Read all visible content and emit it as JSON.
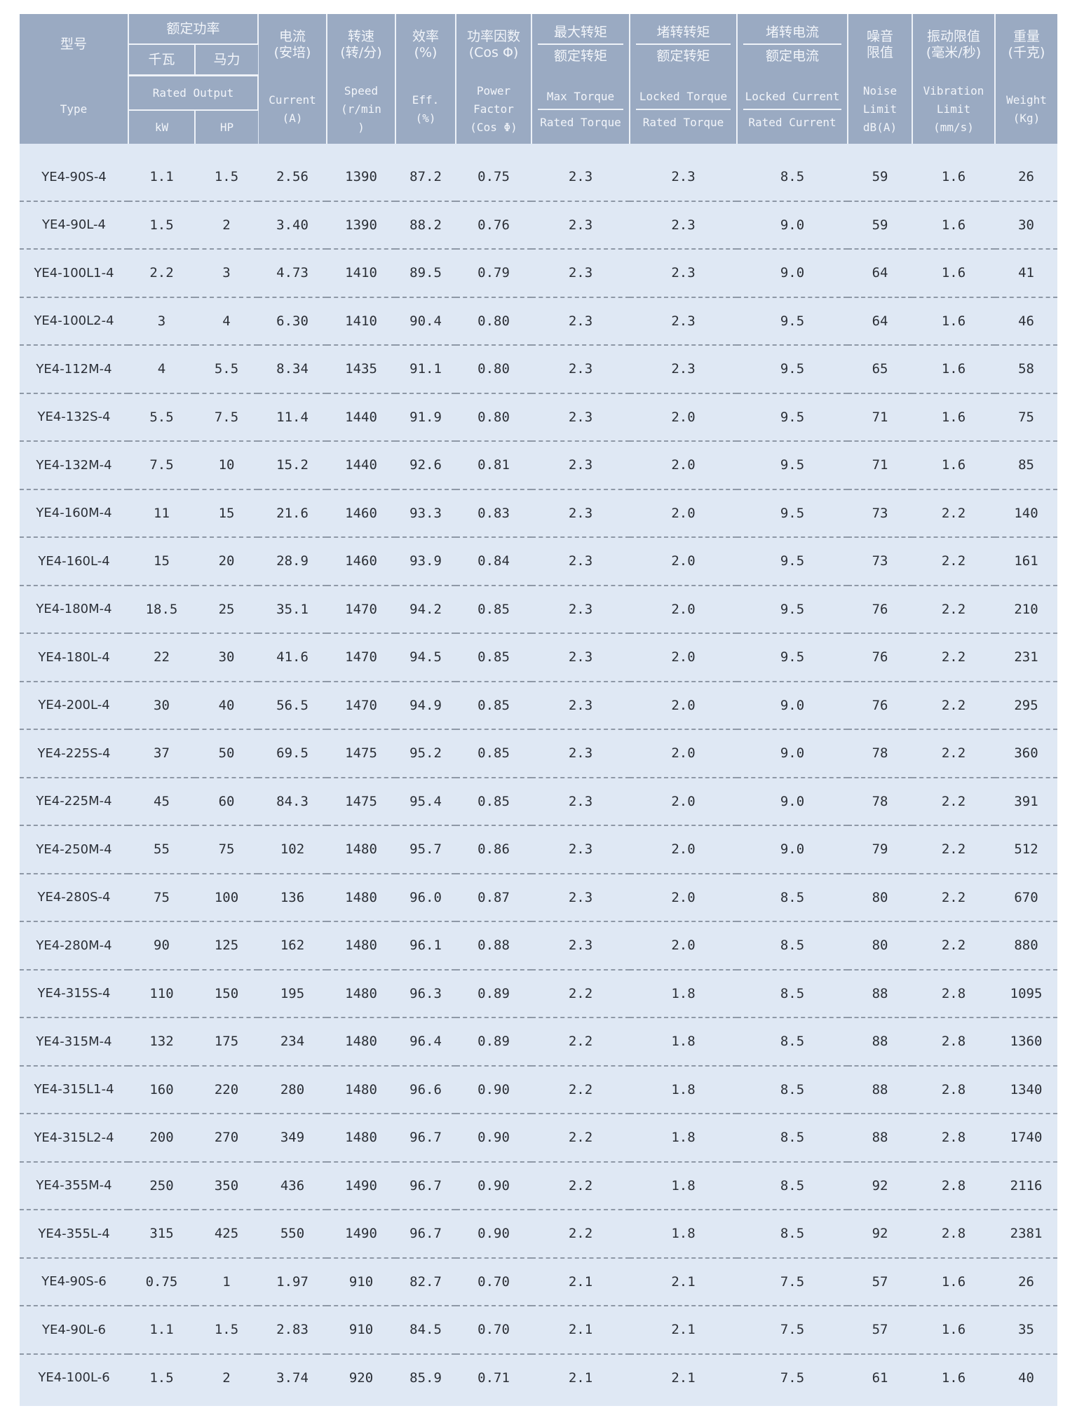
{
  "header": {
    "type_zh": "型号",
    "type_en": "Type",
    "rated_output_zh": "额定功率",
    "rated_output_en": "Rated Output",
    "kw_zh": "千瓦",
    "kw_en": "kW",
    "hp_zh": "马力",
    "hp_en": "HP",
    "current_zh": "电流",
    "current_unit_zh": "(安培)",
    "current_en": "Current",
    "current_unit_en": "(A)",
    "speed_zh": "转速",
    "speed_unit_zh": "(转/分)",
    "speed_en": "Speed",
    "speed_unit_en": "(r/min",
    "speed_unit_en_end": ")",
    "eff_zh": "效率",
    "eff_unit_zh": "(%)",
    "eff_en": "Eff.",
    "eff_unit_en": "(%)",
    "pf_zh": "功率因数",
    "pf_unit_zh": "(Cos Φ)",
    "pf_en_1": "Power",
    "pf_en_2": "Factor",
    "pf_en_3": "(Cos Φ)",
    "maxtorque_zh_top": "最大转矩",
    "maxtorque_zh_bot": "额定转矩",
    "maxtorque_en_top": "Max Torque",
    "maxtorque_en_bot": "Rated Torque",
    "lockedtorque_zh_top": "堵转转矩",
    "lockedtorque_zh_bot": "额定转矩",
    "lockedtorque_en_top": "Locked Torque",
    "lockedtorque_en_bot": "Rated Torque",
    "lockedcurrent_zh_top": "堵转电流",
    "lockedcurrent_zh_bot": "额定电流",
    "lockedcurrent_en_top": "Locked Current",
    "lockedcurrent_en_bot": "Rated Current",
    "noise_zh_1": "噪音",
    "noise_zh_2": "限值",
    "noise_en_1": "Noise",
    "noise_en_2": "Limit",
    "noise_en_3": "dB(A)",
    "vib_zh_1": "振动限值",
    "vib_zh_2": "(毫米/秒)",
    "vib_en_1": "Vibration",
    "vib_en_2": "Limit",
    "vib_en_3": "(mm/s)",
    "weight_zh_1": "重量",
    "weight_zh_2": "(千克)",
    "weight_en_1": "Weight",
    "weight_en_2": "(Kg)"
  },
  "rows": [
    [
      "YE4-90S-4",
      "1.1",
      "1.5",
      "2.56",
      "1390",
      "87.2",
      "0.75",
      "2.3",
      "2.3",
      "8.5",
      "59",
      "1.6",
      "26"
    ],
    [
      "YE4-90L-4",
      "1.5",
      "2",
      "3.40",
      "1390",
      "88.2",
      "0.76",
      "2.3",
      "2.3",
      "9.0",
      "59",
      "1.6",
      "30"
    ],
    [
      "YE4-100L1-4",
      "2.2",
      "3",
      "4.73",
      "1410",
      "89.5",
      "0.79",
      "2.3",
      "2.3",
      "9.0",
      "64",
      "1.6",
      "41"
    ],
    [
      "YE4-100L2-4",
      "3",
      "4",
      "6.30",
      "1410",
      "90.4",
      "0.80",
      "2.3",
      "2.3",
      "9.5",
      "64",
      "1.6",
      "46"
    ],
    [
      "YE4-112M-4",
      "4",
      "5.5",
      "8.34",
      "1435",
      "91.1",
      "0.80",
      "2.3",
      "2.3",
      "9.5",
      "65",
      "1.6",
      "58"
    ],
    [
      "YE4-132S-4",
      "5.5",
      "7.5",
      "11.4",
      "1440",
      "91.9",
      "0.80",
      "2.3",
      "2.0",
      "9.5",
      "71",
      "1.6",
      "75"
    ],
    [
      "YE4-132M-4",
      "7.5",
      "10",
      "15.2",
      "1440",
      "92.6",
      "0.81",
      "2.3",
      "2.0",
      "9.5",
      "71",
      "1.6",
      "85"
    ],
    [
      "YE4-160M-4",
      "11",
      "15",
      "21.6",
      "1460",
      "93.3",
      "0.83",
      "2.3",
      "2.0",
      "9.5",
      "73",
      "2.2",
      "140"
    ],
    [
      "YE4-160L-4",
      "15",
      "20",
      "28.9",
      "1460",
      "93.9",
      "0.84",
      "2.3",
      "2.0",
      "9.5",
      "73",
      "2.2",
      "161"
    ],
    [
      "YE4-180M-4",
      "18.5",
      "25",
      "35.1",
      "1470",
      "94.2",
      "0.85",
      "2.3",
      "2.0",
      "9.5",
      "76",
      "2.2",
      "210"
    ],
    [
      "YE4-180L-4",
      "22",
      "30",
      "41.6",
      "1470",
      "94.5",
      "0.85",
      "2.3",
      "2.0",
      "9.5",
      "76",
      "2.2",
      "231"
    ],
    [
      "YE4-200L-4",
      "30",
      "40",
      "56.5",
      "1470",
      "94.9",
      "0.85",
      "2.3",
      "2.0",
      "9.0",
      "76",
      "2.2",
      "295"
    ],
    [
      "YE4-225S-4",
      "37",
      "50",
      "69.5",
      "1475",
      "95.2",
      "0.85",
      "2.3",
      "2.0",
      "9.0",
      "78",
      "2.2",
      "360"
    ],
    [
      "YE4-225M-4",
      "45",
      "60",
      "84.3",
      "1475",
      "95.4",
      "0.85",
      "2.3",
      "2.0",
      "9.0",
      "78",
      "2.2",
      "391"
    ],
    [
      "YE4-250M-4",
      "55",
      "75",
      "102",
      "1480",
      "95.7",
      "0.86",
      "2.3",
      "2.0",
      "9.0",
      "79",
      "2.2",
      "512"
    ],
    [
      "YE4-280S-4",
      "75",
      "100",
      "136",
      "1480",
      "96.0",
      "0.87",
      "2.3",
      "2.0",
      "8.5",
      "80",
      "2.2",
      "670"
    ],
    [
      "YE4-280M-4",
      "90",
      "125",
      "162",
      "1480",
      "96.1",
      "0.88",
      "2.3",
      "2.0",
      "8.5",
      "80",
      "2.2",
      "880"
    ],
    [
      "YE4-315S-4",
      "110",
      "150",
      "195",
      "1480",
      "96.3",
      "0.89",
      "2.2",
      "1.8",
      "8.5",
      "88",
      "2.8",
      "1095"
    ],
    [
      "YE4-315M-4",
      "132",
      "175",
      "234",
      "1480",
      "96.4",
      "0.89",
      "2.2",
      "1.8",
      "8.5",
      "88",
      "2.8",
      "1360"
    ],
    [
      "YE4-315L1-4",
      "160",
      "220",
      "280",
      "1480",
      "96.6",
      "0.90",
      "2.2",
      "1.8",
      "8.5",
      "88",
      "2.8",
      "1340"
    ],
    [
      "YE4-315L2-4",
      "200",
      "270",
      "349",
      "1480",
      "96.7",
      "0.90",
      "2.2",
      "1.8",
      "8.5",
      "88",
      "2.8",
      "1740"
    ],
    [
      "YE4-355M-4",
      "250",
      "350",
      "436",
      "1490",
      "96.7",
      "0.90",
      "2.2",
      "1.8",
      "8.5",
      "92",
      "2.8",
      "2116"
    ],
    [
      "YE4-355L-4",
      "315",
      "425",
      "550",
      "1490",
      "96.7",
      "0.90",
      "2.2",
      "1.8",
      "8.5",
      "92",
      "2.8",
      "2381"
    ],
    [
      "YE4-90S-6",
      "0.75",
      "1",
      "1.97",
      "910",
      "82.7",
      "0.70",
      "2.1",
      "2.1",
      "7.5",
      "57",
      "1.6",
      "26"
    ],
    [
      "YE4-90L-6",
      "1.1",
      "1.5",
      "2.83",
      "910",
      "84.5",
      "0.70",
      "2.1",
      "2.1",
      "7.5",
      "57",
      "1.6",
      "35"
    ],
    [
      "YE4-100L-6",
      "1.5",
      "2",
      "3.74",
      "920",
      "85.9",
      "0.71",
      "2.1",
      "2.1",
      "7.5",
      "61",
      "1.6",
      "40"
    ]
  ]
}
